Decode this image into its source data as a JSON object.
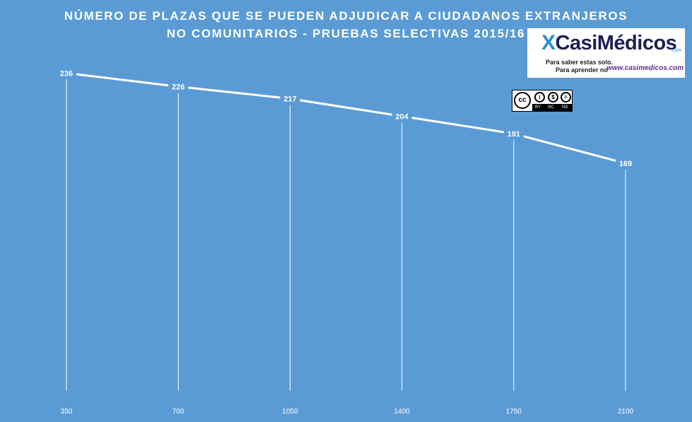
{
  "title": {
    "line1": "NÚMERO DE PLAZAS QUE SE PUEDEN ADJUDICAR A CIUDADANOS EXTRANJEROS",
    "line2": "NO COMUNITARIOS  - PRUEBAS SELECTIVAS 2015/16"
  },
  "logo": {
    "brand_prefix": "X",
    "brand_text": "CasiMédicos",
    "brand_suffix": ".com",
    "tagline_1": "Para saber estas solo.",
    "tagline_2": "Para aprender no",
    "url": "www.casimedicos.com"
  },
  "license_badge": {
    "cc_glyph": "cc",
    "labels": [
      "BY",
      "NC",
      "ND"
    ],
    "icons": [
      "cc-icon",
      "by-icon",
      "nc-icon",
      "nd-icon"
    ]
  },
  "colors": {
    "background": "#5b9bd5",
    "line": "#ffffff",
    "droplines": "#ffffff",
    "labels": "#ffffff"
  },
  "chart_data": {
    "type": "line",
    "title": "NÚMERO DE PLAZAS QUE SE PUEDEN ADJUDICAR A CIUDADANOS EXTRANJEROS NO COMUNITARIOS  - PRUEBAS SELECTIVAS 2015/16",
    "categories": [
      "350",
      "700",
      "1050",
      "1400",
      "1750",
      "2100"
    ],
    "series": [
      {
        "values": [
          236,
          226,
          217,
          204,
          191,
          169
        ]
      }
    ],
    "data_labels": [
      "236",
      "226",
      "217",
      "204",
      "191",
      "169"
    ],
    "ylim": [
      0,
      250
    ],
    "xlabel": "",
    "ylabel": "",
    "grid": false,
    "drop_lines": true,
    "legend": "none"
  }
}
